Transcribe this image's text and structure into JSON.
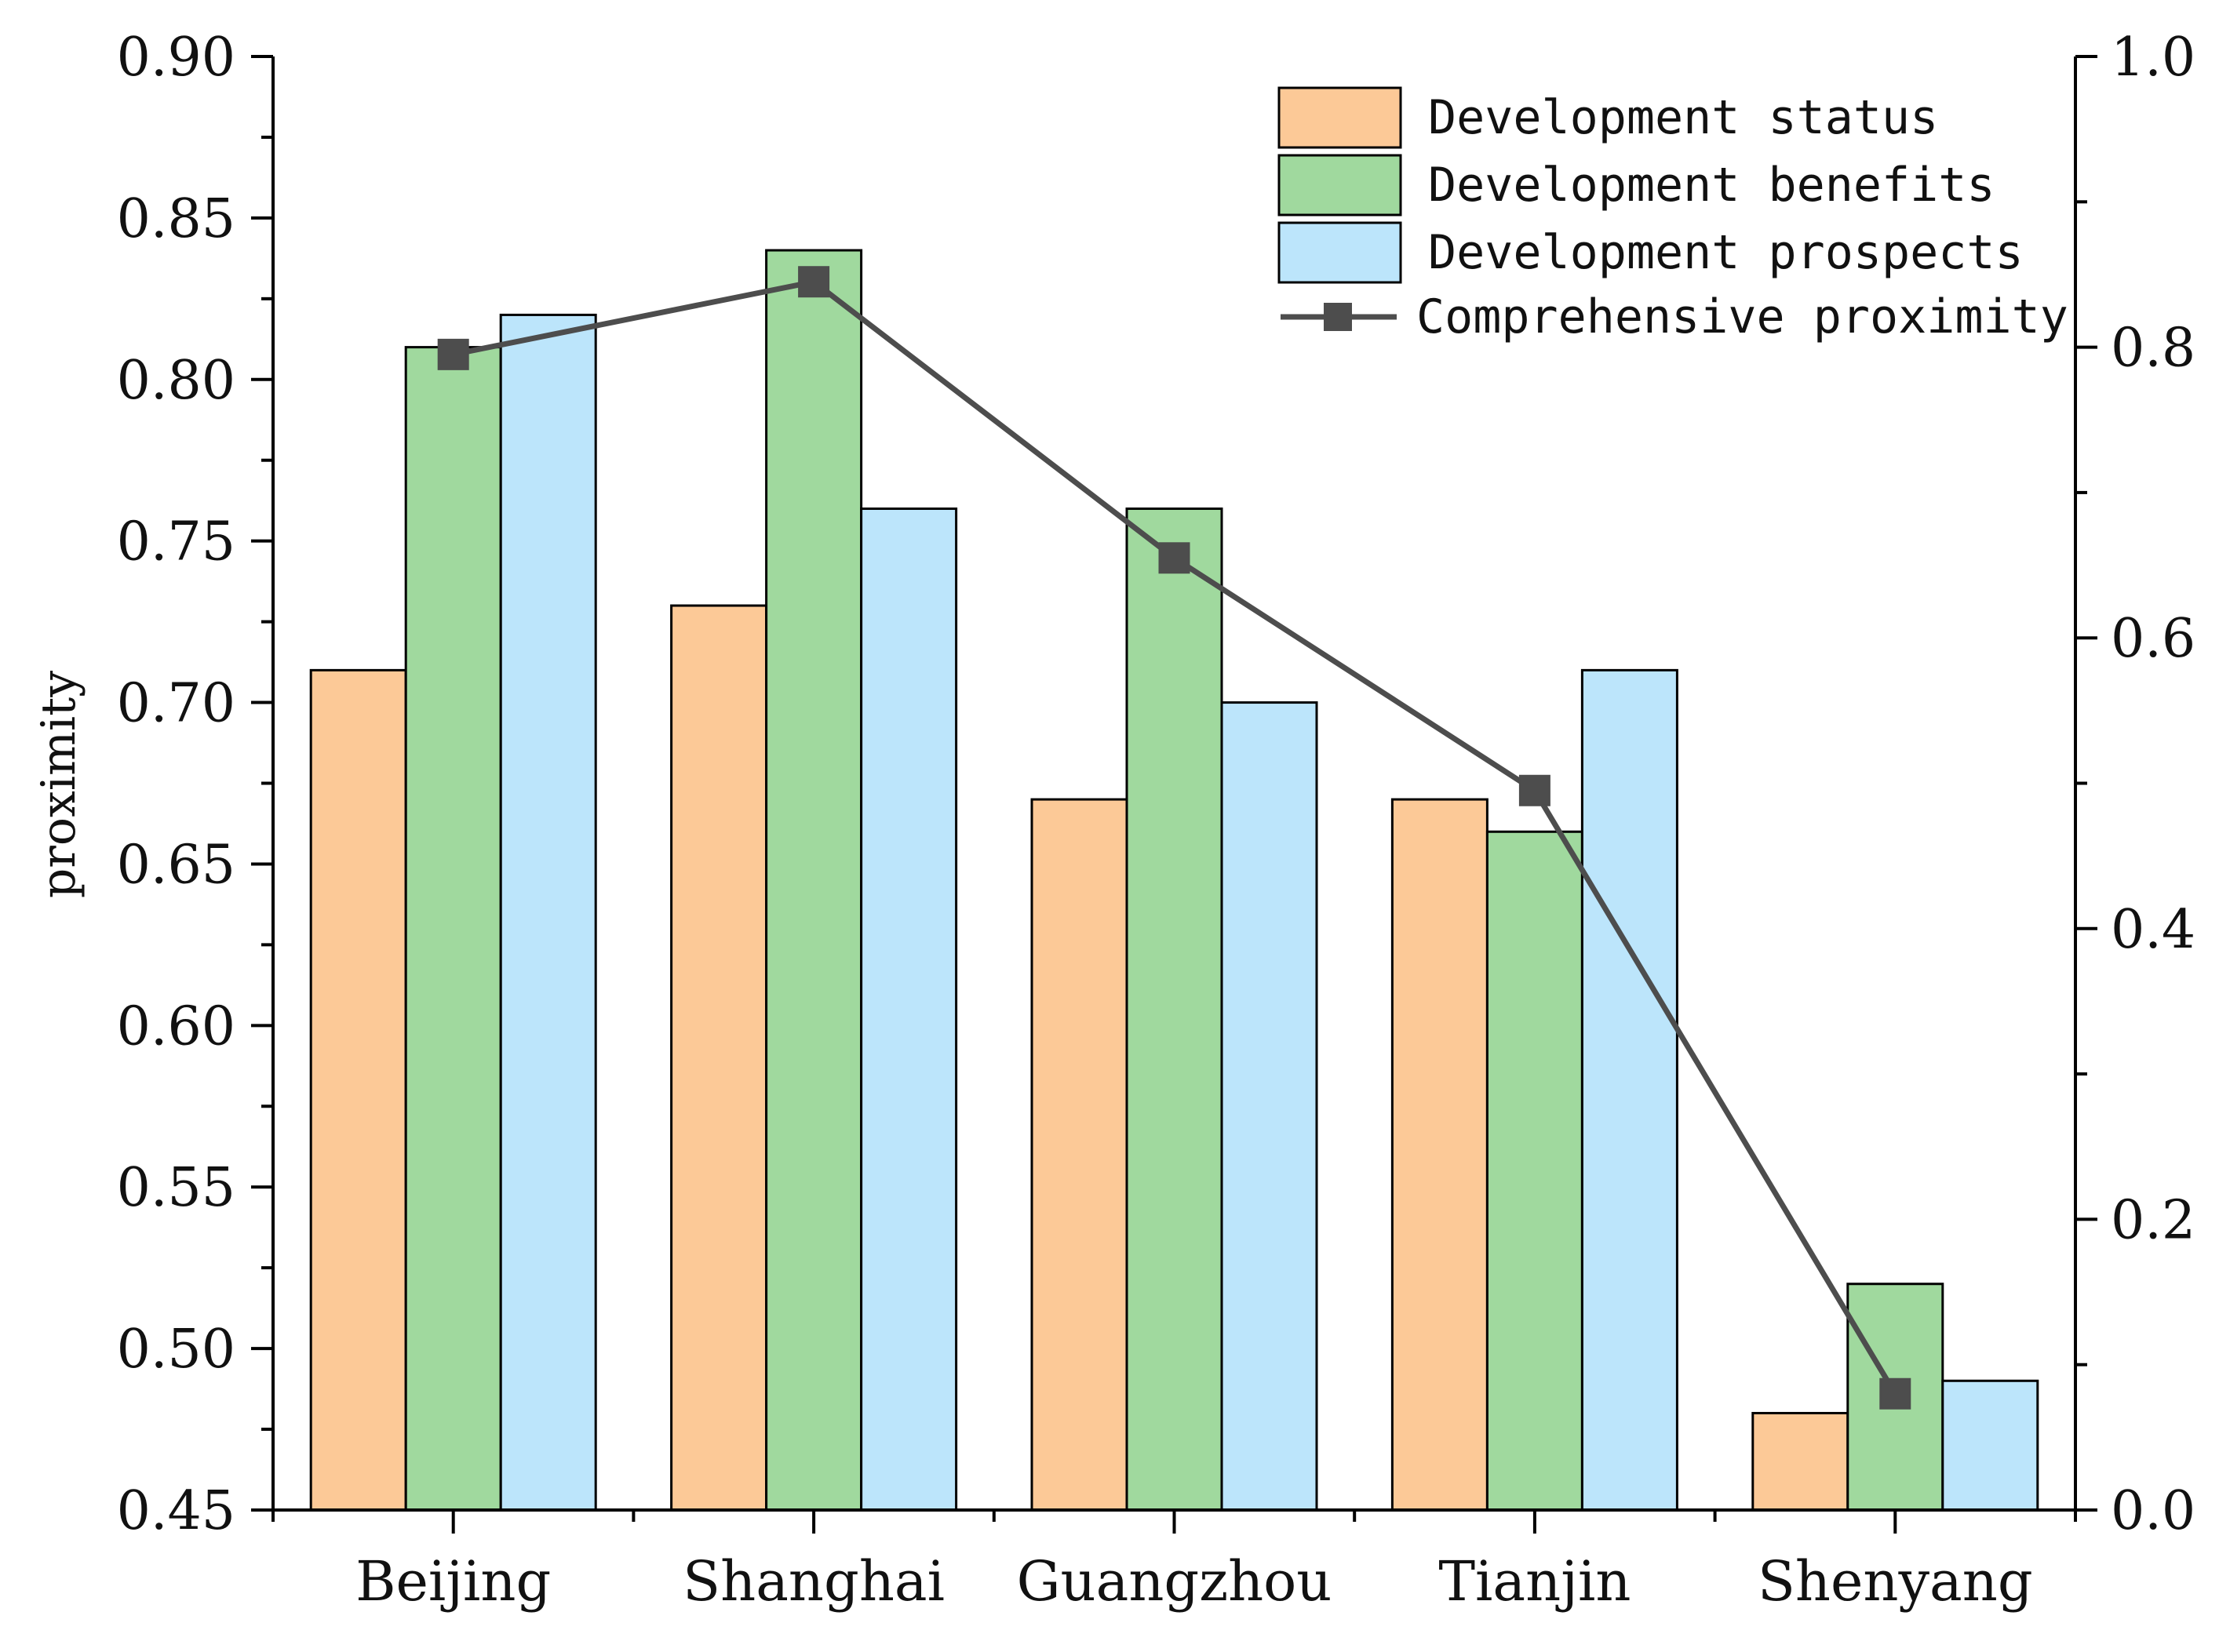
{
  "chart_data": {
    "type": "bar",
    "categories": [
      "Beijing",
      "Shanghai",
      "Guangzhou",
      "Tianjin",
      "Shenyang"
    ],
    "series": [
      {
        "name": "Development status",
        "color": "#FCC997",
        "values": [
          0.71,
          0.73,
          0.67,
          0.67,
          0.48
        ]
      },
      {
        "name": "Development benefits",
        "color": "#A0D99E",
        "values": [
          0.81,
          0.84,
          0.76,
          0.66,
          0.52
        ]
      },
      {
        "name": "Development prospects",
        "color": "#BCE5FB",
        "values": [
          0.82,
          0.76,
          0.7,
          0.71,
          0.49
        ]
      }
    ],
    "line_series": {
      "name": "Comprehensive proximity",
      "axis": "right",
      "color": "#4D4D4D",
      "values": [
        0.795,
        0.845,
        0.655,
        0.495,
        0.08
      ]
    },
    "title": "",
    "xlabel": "",
    "ylabel": "proximity",
    "ylim": [
      0.45,
      0.9
    ],
    "y_ticks": [
      "0.45",
      "0.50",
      "0.55",
      "0.60",
      "0.65",
      "0.70",
      "0.75",
      "0.80",
      "0.85",
      "0.90"
    ],
    "y2lim": [
      0.0,
      1.0
    ],
    "y2_ticks": [
      "0.0",
      "0.2",
      "0.4",
      "0.6",
      "0.8",
      "1.0"
    ],
    "legend_position": "top-right",
    "grid": false
  }
}
